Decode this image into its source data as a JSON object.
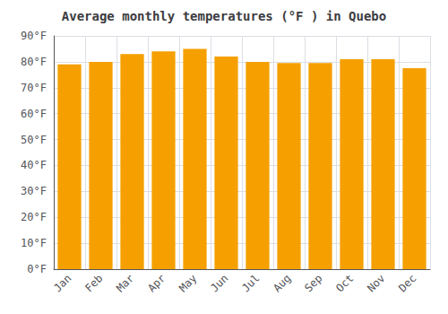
{
  "chart_data": {
    "type": "bar",
    "title": "Average monthly temperatures (°F ) in Quebo",
    "categories": [
      "Jan",
      "Feb",
      "Mar",
      "Apr",
      "May",
      "Jun",
      "Jul",
      "Aug",
      "Sep",
      "Oct",
      "Nov",
      "Dec"
    ],
    "values": [
      79,
      80,
      83,
      84,
      85,
      82,
      80,
      79.5,
      79.5,
      81,
      81,
      77.5
    ],
    "color": "#F5A000",
    "ylim": [
      0,
      90
    ],
    "yticks": [
      {
        "value": 0,
        "label": "0°F"
      },
      {
        "value": 10,
        "label": "10°F"
      },
      {
        "value": 20,
        "label": "20°F"
      },
      {
        "value": 30,
        "label": "30°F"
      },
      {
        "value": 40,
        "label": "40°F"
      },
      {
        "value": 50,
        "label": "50°F"
      },
      {
        "value": 60,
        "label": "60°F"
      },
      {
        "value": 70,
        "label": "70°F"
      },
      {
        "value": 80,
        "label": "80°F"
      },
      {
        "value": 90,
        "label": "90°F"
      }
    ],
    "grid": true
  }
}
